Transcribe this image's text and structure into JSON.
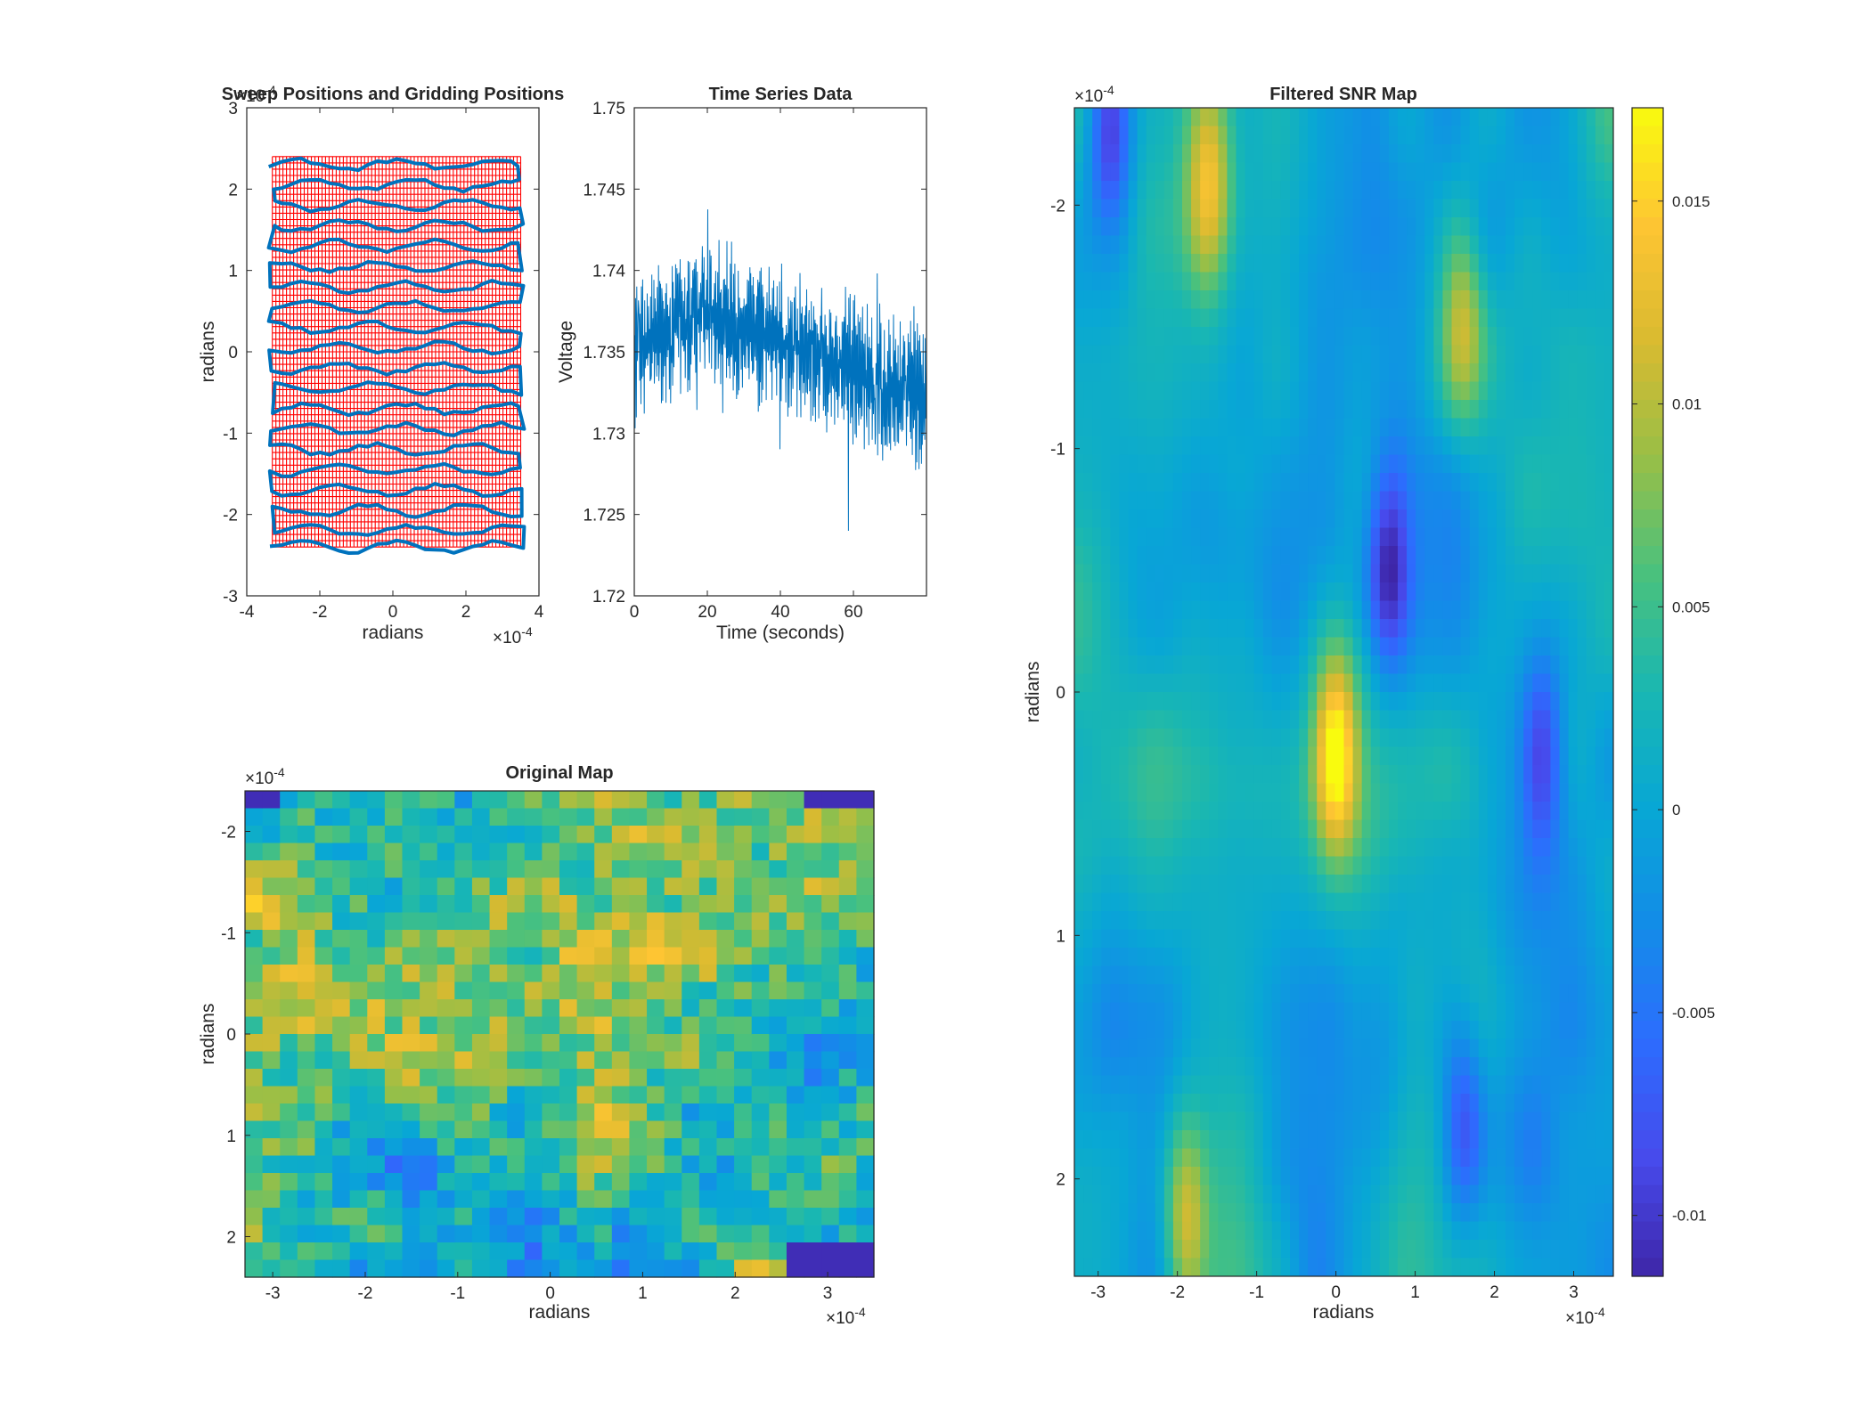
{
  "colors": {
    "sweep_path": "#0072BD",
    "grid_marks": "#ff0000",
    "time_series": "#0072BD",
    "axes": "#262626",
    "colormap": "parula"
  },
  "chart_data": [
    {
      "id": "sweep",
      "type": "line",
      "title": "Sweep Positions and Gridding Positions",
      "xlabel": "radians",
      "ylabel": "radians",
      "xlim": [
        -4,
        4
      ],
      "ylim": [
        -3,
        3
      ],
      "x_ticks": [
        "-4",
        "-2",
        "0",
        "2",
        "4"
      ],
      "y_ticks": [
        "3",
        "2",
        "1",
        "0",
        "-1",
        "-2",
        "-3"
      ],
      "x_exponent": "×10",
      "x_exponent_power": "-4",
      "y_exponent": "×10",
      "y_exponent_power": "-4",
      "grid_extent": {
        "x": [
          -3.3,
          3.5
        ],
        "y": [
          -2.4,
          2.4
        ]
      },
      "sweep_rows": [
        2.3,
        2.05,
        1.8,
        1.55,
        1.3,
        1.05,
        0.8,
        0.55,
        0.3,
        0.05,
        -0.2,
        -0.45,
        -0.7,
        -0.95,
        -1.2,
        -1.45,
        -1.7,
        -1.95,
        -2.2,
        -2.4
      ]
    },
    {
      "id": "timeseries",
      "type": "line",
      "title": "Time Series Data",
      "xlabel": "Time (seconds)",
      "ylabel": "Voltage",
      "xlim": [
        0,
        80
      ],
      "ylim": [
        1.72,
        1.75
      ],
      "x_ticks": [
        "0",
        "20",
        "40",
        "60"
      ],
      "y_ticks": [
        "1.75",
        "1.745",
        "1.74",
        "1.735",
        "1.73",
        "1.725",
        "1.72"
      ],
      "series_summary": {
        "start_mean": 1.735,
        "peak_mean_time": 20,
        "peak_mean": 1.7375,
        "end_mean": 1.732,
        "amplitude": 0.005
      }
    },
    {
      "id": "original",
      "type": "heatmap",
      "title": "Original Map",
      "xlabel": "radians",
      "ylabel": "radians",
      "xlim": [
        -3.3,
        3.5
      ],
      "ylim": [
        -2.4,
        2.4
      ],
      "x_ticks": [
        "-3",
        "-2",
        "-1",
        "0",
        "1",
        "2",
        "3"
      ],
      "y_ticks": [
        "-2",
        "-1",
        "0",
        "1",
        "2"
      ],
      "x_exponent": "×10",
      "x_exponent_power": "-4",
      "y_exponent": "×10",
      "y_exponent_power": "-4",
      "grid_size": [
        36,
        28
      ]
    },
    {
      "id": "filtered",
      "type": "heatmap",
      "title": "Filtered SNR Map",
      "xlabel": "radians",
      "ylabel": "radians",
      "xlim": [
        -3.3,
        3.5
      ],
      "ylim": [
        -2.4,
        2.4
      ],
      "x_ticks": [
        "-3",
        "-2",
        "-1",
        "0",
        "1",
        "2",
        "3"
      ],
      "y_ticks": [
        "-2",
        "-1",
        "0",
        "1",
        "2"
      ],
      "x_exponent": "×10",
      "x_exponent_power": "-4",
      "y_exponent": "×10",
      "y_exponent_power": "-4",
      "grid_size": [
        60,
        64
      ],
      "clim": [
        -0.0115,
        0.0173
      ],
      "colorbar_ticks": [
        "0.015",
        "0.01",
        "0.005",
        "0",
        "-0.005",
        "-0.01"
      ],
      "colorbar_values": [
        0.015,
        0.01,
        0.005,
        0,
        -0.005,
        -0.01
      ],
      "features": [
        {
          "x": 0.0,
          "y": 0.25,
          "value": 0.017
        },
        {
          "x": 0.65,
          "y": -0.5,
          "value": -0.0105
        },
        {
          "x": 1.6,
          "y": 1.8,
          "value": -0.01
        },
        {
          "x": 2.6,
          "y": 0.25,
          "value": -0.008
        },
        {
          "x": -2.85,
          "y": -2.3,
          "value": -0.01
        },
        {
          "x": -1.6,
          "y": -2.1,
          "value": 0.011
        },
        {
          "x": 1.6,
          "y": -1.5,
          "value": 0.01
        },
        {
          "x": -1.9,
          "y": 2.15,
          "value": 0.011
        }
      ]
    }
  ]
}
